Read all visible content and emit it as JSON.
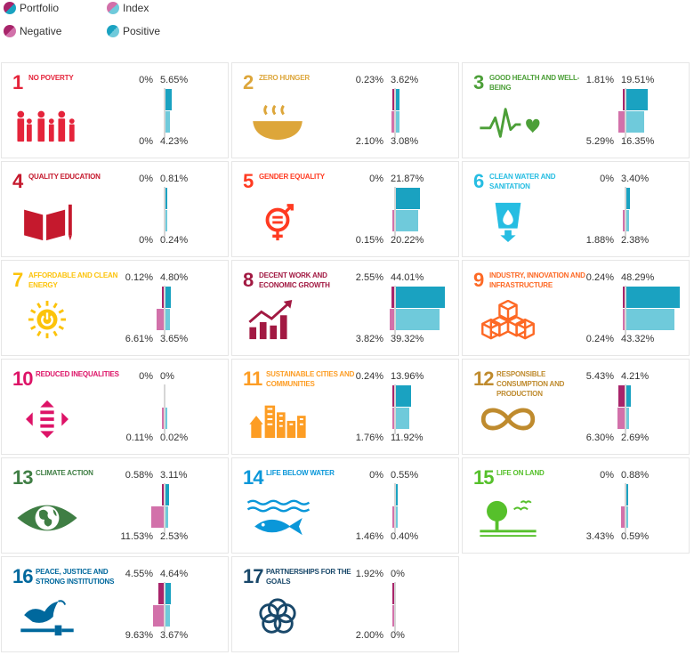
{
  "legend": [
    {
      "label": "Portfolio",
      "style": "dot-dark"
    },
    {
      "label": "Index",
      "style": "dot-light"
    },
    {
      "label": "Negative",
      "style": "dot-neg"
    },
    {
      "label": "Positive",
      "style": "dot-pos"
    }
  ],
  "colors": {
    "portfolio_positive": "#1aa2c1",
    "index_positive": "#6fcadb",
    "portfolio_negative": "#a8246a",
    "index_negative": "#d271aa"
  },
  "chart_data": {
    "type": "bar",
    "orientation": "horizontal",
    "layout": "small-multiples",
    "units": "%",
    "series": [
      {
        "name": "Portfolio"
      },
      {
        "name": "Index"
      }
    ],
    "goals": [
      {
        "number": "1",
        "label": "No poverty",
        "color": "#e5243b",
        "icon": "family-icon",
        "portfolio": {
          "negative": 0,
          "positive": 5.65
        },
        "index": {
          "negative": 0,
          "positive": 4.23
        },
        "labels": {
          "pn": "0%",
          "pp": "5.65%",
          "in": "0%",
          "ip": "4.23%"
        }
      },
      {
        "number": "2",
        "label": "Zero hunger",
        "color": "#dda63a",
        "icon": "bowl-icon",
        "portfolio": {
          "negative": 0.23,
          "positive": 3.62
        },
        "index": {
          "negative": 2.1,
          "positive": 3.08
        },
        "labels": {
          "pn": "0.23%",
          "pp": "3.62%",
          "in": "2.10%",
          "ip": "3.08%"
        }
      },
      {
        "number": "3",
        "label": "Good health and well-being",
        "color": "#4c9f38",
        "icon": "heartbeat-icon",
        "portfolio": {
          "negative": 1.81,
          "positive": 19.51
        },
        "index": {
          "negative": 5.29,
          "positive": 16.35
        },
        "labels": {
          "pn": "1.81%",
          "pp": "19.51%",
          "in": "5.29%",
          "ip": "16.35%"
        }
      },
      {
        "number": "4",
        "label": "Quality education",
        "color": "#c5192d",
        "icon": "book-icon",
        "portfolio": {
          "negative": 0,
          "positive": 0.81
        },
        "index": {
          "negative": 0,
          "positive": 0.24
        },
        "labels": {
          "pn": "0%",
          "pp": "0.81%",
          "in": "0%",
          "ip": "0.24%"
        }
      },
      {
        "number": "5",
        "label": "Gender equality",
        "color": "#ff3a21",
        "icon": "gender-icon",
        "portfolio": {
          "negative": 0,
          "positive": 21.87
        },
        "index": {
          "negative": 0.15,
          "positive": 20.22
        },
        "labels": {
          "pn": "0%",
          "pp": "21.87%",
          "in": "0.15%",
          "ip": "20.22%"
        }
      },
      {
        "number": "6",
        "label": "Clean water and sanitation",
        "color": "#26bde2",
        "icon": "water-glass-icon",
        "portfolio": {
          "negative": 0,
          "positive": 3.4
        },
        "index": {
          "negative": 1.88,
          "positive": 2.38
        },
        "labels": {
          "pn": "0%",
          "pp": "3.40%",
          "in": "1.88%",
          "ip": "2.38%"
        }
      },
      {
        "number": "7",
        "label": "Affordable and clean energy",
        "color": "#fcc30b",
        "icon": "sun-power-icon",
        "portfolio": {
          "negative": 0.12,
          "positive": 4.8
        },
        "index": {
          "negative": 6.61,
          "positive": 3.65
        },
        "labels": {
          "pn": "0.12%",
          "pp": "4.80%",
          "in": "6.61%",
          "ip": "3.65%"
        }
      },
      {
        "number": "8",
        "label": "Decent work and economic growth",
        "color": "#a21942",
        "icon": "growth-chart-icon",
        "portfolio": {
          "negative": 2.55,
          "positive": 44.01
        },
        "index": {
          "negative": 3.82,
          "positive": 39.32
        },
        "labels": {
          "pn": "2.55%",
          "pp": "44.01%",
          "in": "3.82%",
          "ip": "39.32%"
        }
      },
      {
        "number": "9",
        "label": "Industry, innovation and infrastructure",
        "color": "#fd6925",
        "icon": "cubes-icon",
        "portfolio": {
          "negative": 0.24,
          "positive": 48.29
        },
        "index": {
          "negative": 0.24,
          "positive": 43.32
        },
        "labels": {
          "pn": "0.24%",
          "pp": "48.29%",
          "in": "0.24%",
          "ip": "43.32%"
        }
      },
      {
        "number": "10",
        "label": "Reduced inequalities",
        "color": "#dd1367",
        "icon": "equality-arrows-icon",
        "portfolio": {
          "negative": 0,
          "positive": 0
        },
        "index": {
          "negative": 0.11,
          "positive": 0.02
        },
        "labels": {
          "pn": "0%",
          "pp": "0%",
          "in": "0.11%",
          "ip": "0.02%"
        }
      },
      {
        "number": "11",
        "label": "Sustainable cities and communities",
        "color": "#fd9d24",
        "icon": "city-icon",
        "portfolio": {
          "negative": 0.24,
          "positive": 13.96
        },
        "index": {
          "negative": 1.76,
          "positive": 11.92
        },
        "labels": {
          "pn": "0.24%",
          "pp": "13.96%",
          "in": "1.76%",
          "ip": "11.92%"
        }
      },
      {
        "number": "12",
        "label": "Responsible consumption and production",
        "color": "#bf8b2e",
        "icon": "infinity-icon",
        "portfolio": {
          "negative": 5.43,
          "positive": 4.21
        },
        "index": {
          "negative": 6.3,
          "positive": 2.69
        },
        "labels": {
          "pn": "5.43%",
          "pp": "4.21%",
          "in": "6.30%",
          "ip": "2.69%"
        }
      },
      {
        "number": "13",
        "label": "Climate action",
        "color": "#3f7e44",
        "icon": "earth-eye-icon",
        "portfolio": {
          "negative": 0.58,
          "positive": 3.11
        },
        "index": {
          "negative": 11.53,
          "positive": 2.53
        },
        "labels": {
          "pn": "0.58%",
          "pp": "3.11%",
          "in": "11.53%",
          "ip": "2.53%"
        }
      },
      {
        "number": "14",
        "label": "Life below water",
        "color": "#0a97d9",
        "icon": "fish-icon",
        "portfolio": {
          "negative": 0,
          "positive": 0.55
        },
        "index": {
          "negative": 1.46,
          "positive": 0.4
        },
        "labels": {
          "pn": "0%",
          "pp": "0.55%",
          "in": "1.46%",
          "ip": "0.40%"
        }
      },
      {
        "number": "15",
        "label": "Life on land",
        "color": "#56c02b",
        "icon": "tree-icon",
        "portfolio": {
          "negative": 0,
          "positive": 0.88
        },
        "index": {
          "negative": 3.43,
          "positive": 0.59
        },
        "labels": {
          "pn": "0%",
          "pp": "0.88%",
          "in": "3.43%",
          "ip": "0.59%"
        }
      },
      {
        "number": "16",
        "label": "Peace, justice and strong institutions",
        "color": "#00689d",
        "icon": "dove-gavel-icon",
        "portfolio": {
          "negative": 4.55,
          "positive": 4.64
        },
        "index": {
          "negative": 9.63,
          "positive": 3.67
        },
        "labels": {
          "pn": "4.55%",
          "pp": "4.64%",
          "in": "9.63%",
          "ip": "3.67%"
        }
      },
      {
        "number": "17",
        "label": "Partnerships for the goals",
        "color": "#19486a",
        "icon": "rings-icon",
        "portfolio": {
          "negative": 1.92,
          "positive": 0
        },
        "index": {
          "negative": 2.0,
          "positive": 0
        },
        "labels": {
          "pn": "1.92%",
          "pp": "0%",
          "in": "2.00%",
          "ip": "0%"
        }
      }
    ]
  }
}
